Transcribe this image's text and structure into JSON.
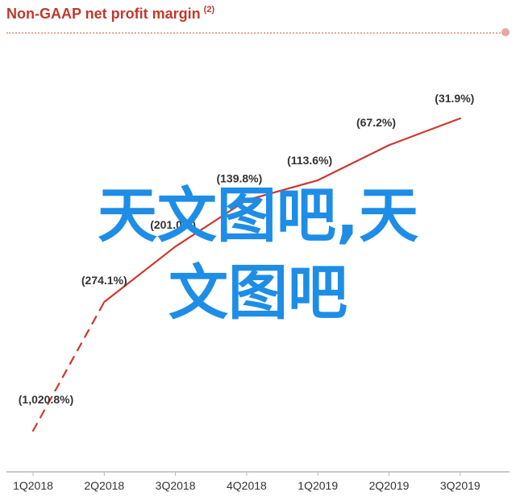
{
  "header": {
    "title": "Non-GAAP net profit margin",
    "footnote_marker": "(2)"
  },
  "watermark": {
    "line1": "天文图吧,天",
    "line2": "文图吧"
  },
  "colors": {
    "line": "#d0372e",
    "axis": "#b8b8b8",
    "text": "#333333",
    "watermark": "#1e8de6"
  },
  "chart_data": {
    "type": "line",
    "title": "Non-GAAP net profit margin",
    "categories": [
      "1Q2018",
      "2Q2018",
      "3Q2018",
      "4Q2018",
      "1Q2019",
      "2Q2019",
      "3Q2019"
    ],
    "series": [
      {
        "values": [
          -1020.8,
          -274.1,
          -201.0,
          -139.8,
          -113.6,
          -67.2,
          -31.9
        ],
        "labels": [
          "(1,020.8%)",
          "(274.1%)",
          "(201.0%)",
          "(139.8%)",
          "(113.6%)",
          "(67.2%)",
          "(31.9%)"
        ],
        "dashed_segments": [
          0
        ]
      }
    ],
    "unit": "%",
    "ylim": [
      -1070,
      0
    ],
    "grid": false,
    "legend": "none"
  }
}
